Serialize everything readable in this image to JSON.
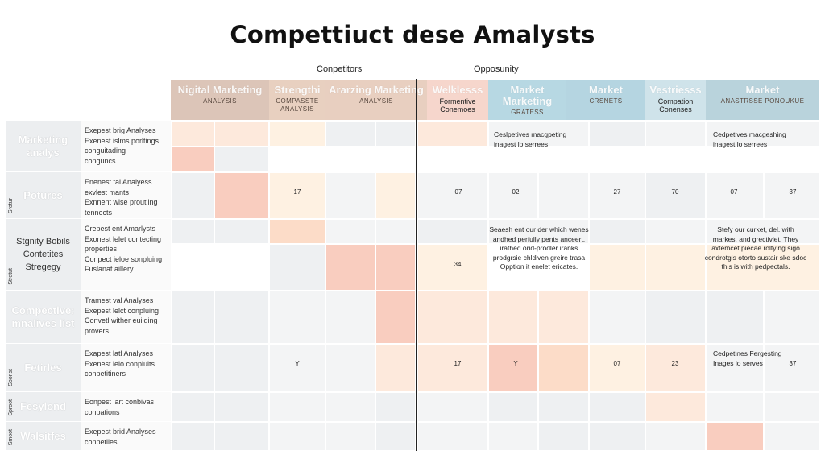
{
  "title": "Compettiuct dese Amalysts",
  "group_labels": {
    "left": "Conpetitors",
    "right": "Opposunity"
  },
  "columns": [
    {
      "main": "Nigital Marketing",
      "sub": "ANALYSIS",
      "color": "#dcc5b8"
    },
    {
      "main": "Strengthi",
      "sub": "COMPASSTE ANALYSIS",
      "color": "#e8d0c0"
    },
    {
      "main": "Ararzing Marketing",
      "sub": "ANALYSIS",
      "color": "#e8cfc0"
    },
    {
      "main": "Welklesss",
      "sub": "Formentive Conemoes",
      "color": "#f6d6cc"
    },
    {
      "main": "Market Marketing",
      "sub": "GRATESS",
      "color": "#b7d8e3"
    },
    {
      "main": "Market",
      "sub": "CRSNETS",
      "color": "#b5d5e1"
    },
    {
      "main": "Vestriesss",
      "sub": "Compation Conenses",
      "color": "#cfe3ea"
    },
    {
      "main": "Market",
      "sub": "ANASTRSSE PONOUKUE",
      "color": "#b9d3dc"
    }
  ],
  "rows": [
    {
      "header": "Marketing analys",
      "tag": "",
      "dark": false,
      "lines": [
        "Exepest brig Analyses",
        "Exenest islms porltings",
        "conguitading",
        "conguncs"
      ]
    },
    {
      "header": "Potures",
      "tag": "Srotur",
      "dark": false,
      "lines": [
        "Enenest tal Analyess",
        "exvlest mants",
        "Exnnent wise proutling",
        "tennects"
      ]
    },
    {
      "header": "Stgnity Bobils Contetites Stregegy",
      "tag": "Strotut",
      "dark": true,
      "lines": [
        "Crepest ent Amarlysts",
        "Exonest lelet contecting",
        "properties",
        "Conpect ieloe sonpluing",
        "Fuslanat aillery"
      ]
    },
    {
      "header": "Compective: mnalives list",
      "tag": "",
      "dark": false,
      "lines": [
        "Tramest val Analyses",
        "Exepest lelct conpluing",
        "Convetl wither euilding",
        "provers"
      ]
    },
    {
      "header": "Fetirles",
      "tag": "Soonst",
      "dark": false,
      "lines": [
        "Exapest latl Analyses",
        "Exenest lelo conpluits",
        "conpetitiners"
      ]
    },
    {
      "header": "Fesylond",
      "tag": "Sproot",
      "dark": false,
      "lines": [
        "Eonpest lart conbivas",
        "conpations"
      ]
    },
    {
      "header": "Walsitfes",
      "tag": "Smoot",
      "dark": false,
      "lines": [
        "Exepest brid Analyses",
        "conpetiles"
      ]
    }
  ],
  "cell_colors": {
    "peach_light": "#fde9dc",
    "peach": "#fcdcc8",
    "salmon": "#f9cdbf",
    "salmon_strong": "#f8c4b4",
    "cream": "#fef1e2",
    "grey": "#eef0f2",
    "grey_light": "#f3f4f5"
  },
  "cell_values": {
    "r2_c2": "17",
    "r2_c4": "07",
    "r2_c5": "02",
    "r2_c6": "27",
    "r2_c7": "70",
    "r2_c8": "07",
    "r2_c9": "37",
    "r3_c4": "34",
    "r5_c2": "Y",
    "r5_c4": "17",
    "r5_c5": "Y",
    "r5_c6": "07",
    "r5_c7": "23",
    "r5_c9": "37"
  },
  "notes": {
    "n1": "Ceslpetives macgpeting inagest lo serrees",
    "n2": "Cedpetives macgeshing inagest lo serrees",
    "n3": "Seaesh ent our der which wenes andhed perfully pents anceert, irathed orid-prodler iranks prodgrsie chldiven greire trasa Opption it enelet ericates.",
    "n4": "Stefy our curket, del. with markes, and grectivlet. They axtemcet piecae roltying sigo condrotgis otorto sustair ske sdoc this is with pedpectals.",
    "n5": "Cedpetines Fergesting Inages lo serves"
  }
}
